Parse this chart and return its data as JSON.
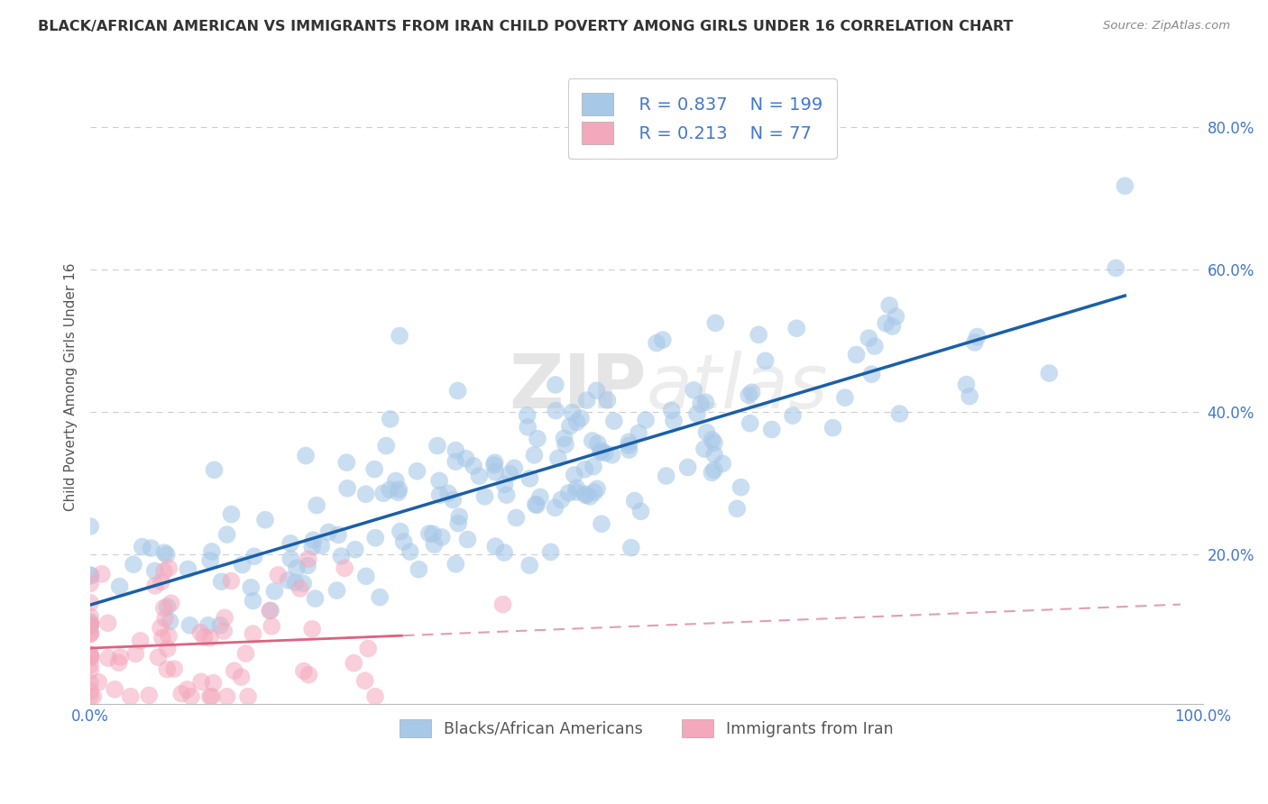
{
  "title": "BLACK/AFRICAN AMERICAN VS IMMIGRANTS FROM IRAN CHILD POVERTY AMONG GIRLS UNDER 16 CORRELATION CHART",
  "source": "Source: ZipAtlas.com",
  "ylabel": "Child Poverty Among Girls Under 16",
  "xlim": [
    0,
    1.0
  ],
  "ylim": [
    -0.01,
    0.88
  ],
  "yticks": [
    0.2,
    0.4,
    0.6,
    0.8
  ],
  "ytick_labels": [
    "20.0%",
    "40.0%",
    "60.0%",
    "80.0%"
  ],
  "legend_labels": [
    "Blacks/African Americans",
    "Immigrants from Iran"
  ],
  "R_blue": 0.837,
  "N_blue": 199,
  "R_pink": 0.213,
  "N_pink": 77,
  "blue_color": "#a8c8e8",
  "pink_color": "#f4a8bc",
  "blue_line_color": "#1a5fa8",
  "pink_line_solid_color": "#e06080",
  "pink_line_dash_color": "#e0a0b0",
  "watermark_zip": "ZIP",
  "watermark_atlas": "atlas",
  "background_color": "#ffffff",
  "title_color": "#333333",
  "title_fontsize": 11.5,
  "axis_label_color": "#555555",
  "grid_color": "#cccccc",
  "tick_label_color": "#4477cc",
  "source_color": "#888888",
  "seed": 42
}
